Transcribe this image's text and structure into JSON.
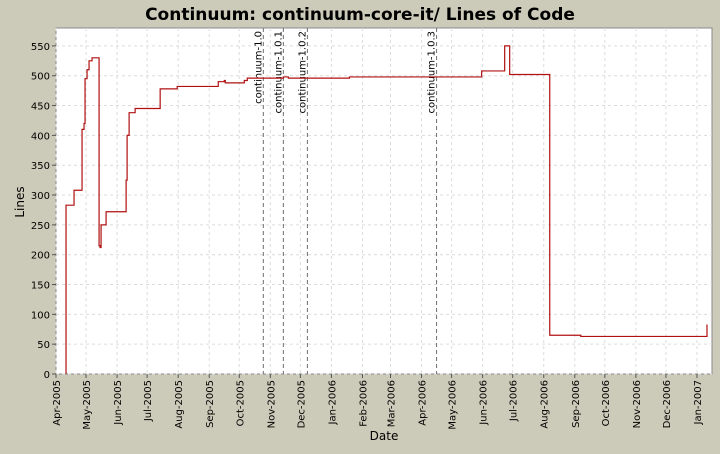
{
  "chart_data": {
    "type": "line",
    "title": "Continuum: continuum-core-it/ Lines of Code",
    "xlabel": "Date",
    "ylabel": "Lines",
    "x_tick_labels": [
      "Apr-2005",
      "May-2005",
      "Jun-2005",
      "Jul-2005",
      "Aug-2005",
      "Sep-2005",
      "Oct-2005",
      "Nov-2005",
      "Dec-2005",
      "Jan-2006",
      "Feb-2006",
      "Mar-2006",
      "Apr-2006",
      "May-2006",
      "Jun-2006",
      "Jul-2006",
      "Aug-2006",
      "Sep-2006",
      "Oct-2006",
      "Nov-2006",
      "Dec-2006",
      "Jan-2007"
    ],
    "y_ticks": [
      0,
      50,
      100,
      150,
      200,
      250,
      300,
      350,
      400,
      450,
      500,
      550
    ],
    "ylim": [
      0,
      580
    ],
    "xlim": [
      "2005-04-01",
      "2007-01-16"
    ],
    "grid": true,
    "colors": {
      "line": "#b01010",
      "markers": "#6e6e6e",
      "background": "#ffffff",
      "frame": "#cccbb9",
      "grid": "#dcdcdc"
    },
    "markers": [
      {
        "label": "continuum-1.0",
        "date": "2005-10-25"
      },
      {
        "label": "continuum-1.0.1",
        "date": "2005-11-14"
      },
      {
        "label": "continuum-1.0.2",
        "date": "2005-12-08"
      },
      {
        "label": "continuum-1.0.3",
        "date": "2006-04-16"
      }
    ],
    "series": [
      {
        "points": [
          [
            "2005-04-11",
            0
          ],
          [
            "2005-04-11",
            283
          ],
          [
            "2005-04-19",
            283
          ],
          [
            "2005-04-19",
            308
          ],
          [
            "2005-04-27",
            308
          ],
          [
            "2005-04-27",
            410
          ],
          [
            "2005-04-29",
            410
          ],
          [
            "2005-04-29",
            420
          ],
          [
            "2005-04-30",
            420
          ],
          [
            "2005-04-30",
            495
          ],
          [
            "2005-05-02",
            495
          ],
          [
            "2005-05-02",
            510
          ],
          [
            "2005-05-04",
            510
          ],
          [
            "2005-05-04",
            525
          ],
          [
            "2005-05-07",
            525
          ],
          [
            "2005-05-07",
            530
          ],
          [
            "2005-05-14",
            530
          ],
          [
            "2005-05-14",
            215
          ],
          [
            "2005-05-15",
            215
          ],
          [
            "2005-05-15",
            212
          ],
          [
            "2005-05-16",
            212
          ],
          [
            "2005-05-16",
            250
          ],
          [
            "2005-05-21",
            250
          ],
          [
            "2005-05-21",
            272
          ],
          [
            "2005-06-10",
            272
          ],
          [
            "2005-06-10",
            325
          ],
          [
            "2005-06-11",
            325
          ],
          [
            "2005-06-11",
            400
          ],
          [
            "2005-06-13",
            400
          ],
          [
            "2005-06-13",
            438
          ],
          [
            "2005-06-19",
            438
          ],
          [
            "2005-06-19",
            445
          ],
          [
            "2005-07-14",
            445
          ],
          [
            "2005-07-14",
            478
          ],
          [
            "2005-07-31",
            478
          ],
          [
            "2005-07-31",
            482
          ],
          [
            "2005-09-10",
            482
          ],
          [
            "2005-09-10",
            490
          ],
          [
            "2005-09-16",
            490
          ],
          [
            "2005-09-16",
            492
          ],
          [
            "2005-09-17",
            492
          ],
          [
            "2005-09-17",
            488
          ],
          [
            "2005-10-06",
            488
          ],
          [
            "2005-10-06",
            492
          ],
          [
            "2005-10-09",
            492
          ],
          [
            "2005-10-09",
            496
          ],
          [
            "2005-11-14",
            496
          ],
          [
            "2005-11-14",
            498
          ],
          [
            "2005-11-19",
            498
          ],
          [
            "2005-11-19",
            496
          ],
          [
            "2006-01-19",
            496
          ],
          [
            "2006-01-19",
            498
          ],
          [
            "2006-05-31",
            498
          ],
          [
            "2006-05-31",
            508
          ],
          [
            "2006-06-23",
            508
          ],
          [
            "2006-06-23",
            550
          ],
          [
            "2006-06-28",
            550
          ],
          [
            "2006-06-28",
            502
          ],
          [
            "2006-08-07",
            502
          ],
          [
            "2006-08-07",
            65
          ],
          [
            "2006-09-07",
            65
          ],
          [
            "2006-09-07",
            63
          ],
          [
            "2007-01-11",
            63
          ],
          [
            "2007-01-11",
            83
          ]
        ]
      }
    ]
  }
}
